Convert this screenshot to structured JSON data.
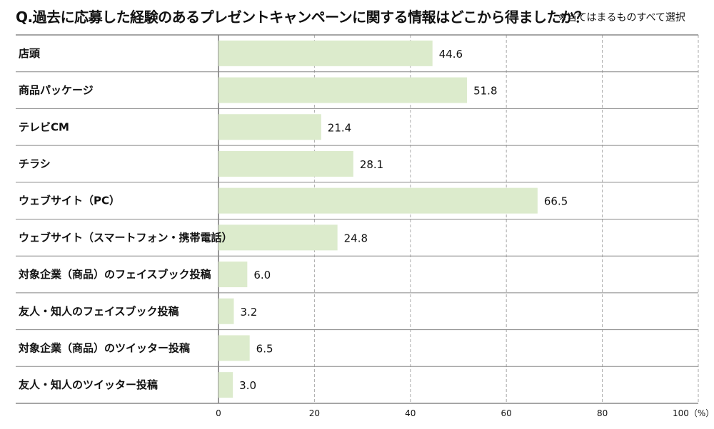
{
  "header": {
    "title": "Q.過去に応募した経験のあるプレゼントキャンペーンに関する情報はどこから得ましたか？",
    "note": "※当てはまるものすべて選択"
  },
  "colors": {
    "bar": "#dcebcc",
    "rule": "#888888",
    "grid": "#aaaaaa"
  },
  "chart_data": {
    "type": "bar",
    "orientation": "horizontal",
    "title": "Q.過去に応募した経験のあるプレゼントキャンペーンに関する情報はどこから得ましたか？",
    "subtitle": "※当てはまるものすべて選択",
    "categories": [
      "店頭",
      "商品パッケージ",
      "テレビCM",
      "チラシ",
      "ウェブサイト（PC）",
      "ウェブサイト（スマートフォン・携帯電話）",
      "対象企業（商品）のフェイスブック投稿",
      "友人・知人のフェイスブック投稿",
      "対象企業（商品）のツイッター投稿",
      "友人・知人のツイッター投稿"
    ],
    "values": [
      44.6,
      51.8,
      21.4,
      28.1,
      66.5,
      24.8,
      6.0,
      3.2,
      6.5,
      3.0
    ],
    "value_labels": [
      "44.6",
      "51.8",
      "21.4",
      "28.1",
      "66.5",
      "24.8",
      "6.0",
      "3.2",
      "6.5",
      "3.0"
    ],
    "xlim": [
      0,
      100
    ],
    "xticks": [
      0,
      20,
      40,
      60,
      80,
      100
    ],
    "xtick_labels": [
      "0",
      "20",
      "40",
      "60",
      "80",
      "100（%）"
    ],
    "grid": true
  }
}
